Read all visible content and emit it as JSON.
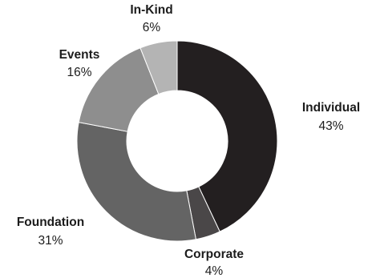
{
  "chart_data": {
    "type": "pie",
    "title": "",
    "slices": [
      {
        "label": "Individual",
        "value": 43,
        "display": "43%",
        "color": "#231f20"
      },
      {
        "label": "Corporate",
        "value": 4,
        "display": "4%",
        "color": "#4a4748"
      },
      {
        "label": "Foundation",
        "value": 31,
        "display": "31%",
        "color": "#646464"
      },
      {
        "label": "Events",
        "value": 16,
        "display": "16%",
        "color": "#8e8e8e"
      },
      {
        "label": "In-Kind",
        "value": 6,
        "display": "6%",
        "color": "#b4b4b4"
      }
    ],
    "donut": true,
    "start_angle_deg": 0,
    "direction": "clockwise",
    "legend": "none"
  }
}
